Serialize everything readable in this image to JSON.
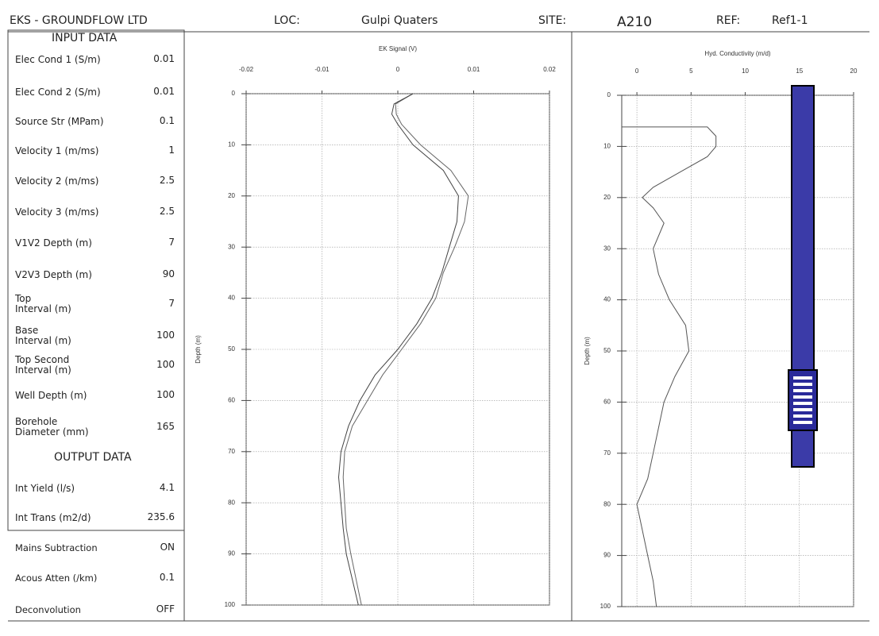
{
  "header": {
    "company": "EKS - GROUNDFLOW LTD",
    "loc_label": "LOC:",
    "loc": "Gulpi Quaters",
    "site_label": "SITE:",
    "site": "A210",
    "ref_label": "REF:",
    "ref": "Ref1-1"
  },
  "input_data": {
    "title": "INPUT DATA",
    "rows": [
      [
        "Elec Cond 1 (S/m)",
        "0.01"
      ],
      [
        "Elec Cond 2 (S/m)",
        "0.01"
      ],
      [
        "Source Str (MPam)",
        "0.1"
      ],
      [
        "Velocity 1 (m/ms)",
        "1"
      ],
      [
        "Velocity 2 (m/ms)",
        "2.5"
      ],
      [
        "Velocity 3 (m/ms)",
        "2.5"
      ],
      [
        "V1V2 Depth (m)",
        "7"
      ],
      [
        "V2V3 Depth (m)",
        "90"
      ],
      [
        "Top\nInterval (m)",
        "7"
      ],
      [
        "Base\nInterval (m)",
        "100"
      ],
      [
        "Top Second\nInterval (m)",
        "100"
      ],
      [
        "Well Depth (m)",
        "100"
      ],
      [
        "Borehole\nDiameter (mm)",
        "165"
      ]
    ]
  },
  "output_data": {
    "title": "OUTPUT DATA",
    "rows": [
      [
        "Int Yield (l/s)",
        "4.1"
      ],
      [
        "Int Trans (m2/d)",
        "235.6"
      ]
    ]
  },
  "settings": {
    "rows": [
      [
        "Mains Subtraction",
        "ON"
      ],
      [
        "Acous Atten (/km)",
        "0.1"
      ],
      [
        "Deconvolution",
        "OFF"
      ]
    ]
  },
  "chart_data": [
    {
      "type": "line",
      "title": "EK Signal (V)",
      "y_label": "Depth (m)",
      "xlim": [
        -0.02,
        0.02
      ],
      "xticks": [
        -0.02,
        -0.01,
        0,
        0.01,
        0.02
      ],
      "ylim": [
        0,
        100
      ],
      "yticks": [
        0,
        10,
        20,
        30,
        40,
        50,
        60,
        70,
        80,
        90,
        100
      ],
      "y_inverted": true,
      "grid": true,
      "y": [
        0,
        2,
        4,
        6,
        10,
        15,
        20,
        25,
        30,
        35,
        40,
        45,
        50,
        55,
        60,
        65,
        70,
        75,
        80,
        85,
        90,
        95,
        100
      ],
      "series": [
        {
          "color": "#666",
          "values": [
            0.002,
            -0.0003,
            -0.0002,
            0.0005,
            0.003,
            0.007,
            0.0093,
            0.0088,
            0.0075,
            0.006,
            0.005,
            0.003,
            0.0005,
            -0.002,
            -0.004,
            -0.006,
            -0.007,
            -0.0072,
            -0.007,
            -0.0068,
            -0.0062,
            -0.0055,
            -0.0048
          ]
        },
        {
          "color": "#444",
          "values": [
            0.002,
            -0.0005,
            -0.0008,
            0.0,
            0.002,
            0.006,
            0.008,
            0.0078,
            0.0068,
            0.0058,
            0.0045,
            0.0025,
            0.0,
            -0.003,
            -0.005,
            -0.0065,
            -0.0075,
            -0.0078,
            -0.0075,
            -0.0072,
            -0.0068,
            -0.006,
            -0.0052
          ]
        }
      ]
    },
    {
      "type": "line",
      "title": "Hyd. Conductivity (m/d)",
      "y_label": "Depth (m)",
      "xlim": [
        -1.4,
        20
      ],
      "xticks": [
        0,
        5,
        10,
        15,
        20
      ],
      "ylim": [
        0,
        100
      ],
      "yticks": [
        0,
        10,
        20,
        30,
        40,
        50,
        60,
        70,
        80,
        90,
        100
      ],
      "y_inverted": true,
      "grid": true,
      "y": [
        6.2,
        6.2,
        8,
        10,
        12,
        15,
        18,
        20,
        22,
        25,
        30,
        35,
        40,
        45,
        50,
        55,
        60,
        65,
        70,
        75,
        80,
        85,
        90,
        95,
        100
      ],
      "series": [
        {
          "color": "#555",
          "values": [
            -1.4,
            6.5,
            7.3,
            7.3,
            6.5,
            4,
            1.5,
            0.5,
            1.5,
            2.5,
            1.5,
            2,
            3,
            4.5,
            4.8,
            3.5,
            2.5,
            2,
            1.5,
            1,
            0,
            0.5,
            1,
            1.5,
            1.8
          ]
        }
      ]
    }
  ]
}
